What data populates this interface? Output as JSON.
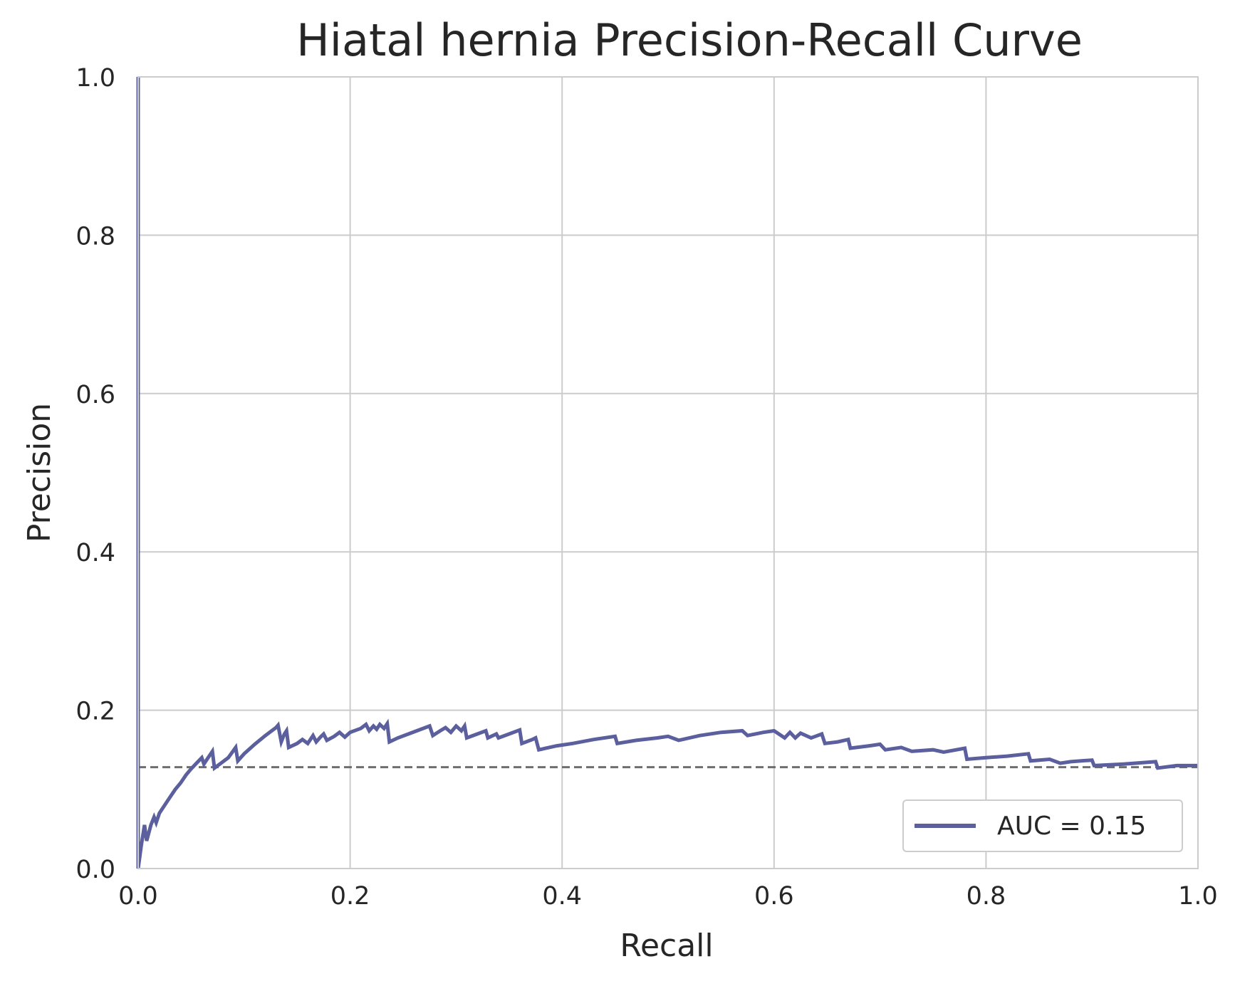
{
  "chart_data": {
    "type": "line",
    "title": "Hiatal hernia Precision-Recall Curve",
    "xlabel": "Recall",
    "ylabel": "Precision",
    "xlim": [
      0.0,
      1.0
    ],
    "ylim": [
      0.0,
      1.0
    ],
    "xticks": [
      "0.0",
      "0.2",
      "0.4",
      "0.6",
      "0.8",
      "1.0"
    ],
    "yticks": [
      "0.0",
      "0.2",
      "0.4",
      "0.6",
      "0.8",
      "1.0"
    ],
    "grid": true,
    "legend_position": "lower-right",
    "series": [
      {
        "name": "AUC = 0.15",
        "color": "#5b5f9d",
        "style": "solid",
        "points": [
          [
            0.0,
            1.0
          ],
          [
            0.0,
            0.0
          ],
          [
            0.003,
            0.03
          ],
          [
            0.006,
            0.055
          ],
          [
            0.008,
            0.035
          ],
          [
            0.012,
            0.055
          ],
          [
            0.015,
            0.065
          ],
          [
            0.017,
            0.058
          ],
          [
            0.02,
            0.07
          ],
          [
            0.025,
            0.08
          ],
          [
            0.03,
            0.09
          ],
          [
            0.035,
            0.1
          ],
          [
            0.04,
            0.108
          ],
          [
            0.045,
            0.118
          ],
          [
            0.05,
            0.126
          ],
          [
            0.055,
            0.133
          ],
          [
            0.06,
            0.14
          ],
          [
            0.062,
            0.132
          ],
          [
            0.065,
            0.138
          ],
          [
            0.07,
            0.148
          ],
          [
            0.072,
            0.127
          ],
          [
            0.078,
            0.133
          ],
          [
            0.085,
            0.14
          ],
          [
            0.092,
            0.153
          ],
          [
            0.094,
            0.136
          ],
          [
            0.1,
            0.145
          ],
          [
            0.11,
            0.157
          ],
          [
            0.12,
            0.168
          ],
          [
            0.13,
            0.178
          ],
          [
            0.132,
            0.181
          ],
          [
            0.135,
            0.16
          ],
          [
            0.138,
            0.17
          ],
          [
            0.14,
            0.174
          ],
          [
            0.142,
            0.153
          ],
          [
            0.15,
            0.158
          ],
          [
            0.155,
            0.163
          ],
          [
            0.16,
            0.158
          ],
          [
            0.165,
            0.168
          ],
          [
            0.168,
            0.16
          ],
          [
            0.172,
            0.166
          ],
          [
            0.175,
            0.17
          ],
          [
            0.178,
            0.162
          ],
          [
            0.185,
            0.167
          ],
          [
            0.19,
            0.172
          ],
          [
            0.195,
            0.166
          ],
          [
            0.2,
            0.172
          ],
          [
            0.21,
            0.177
          ],
          [
            0.215,
            0.182
          ],
          [
            0.218,
            0.174
          ],
          [
            0.222,
            0.18
          ],
          [
            0.225,
            0.176
          ],
          [
            0.228,
            0.182
          ],
          [
            0.232,
            0.177
          ],
          [
            0.235,
            0.183
          ],
          [
            0.237,
            0.16
          ],
          [
            0.245,
            0.165
          ],
          [
            0.255,
            0.17
          ],
          [
            0.265,
            0.175
          ],
          [
            0.275,
            0.18
          ],
          [
            0.278,
            0.168
          ],
          [
            0.285,
            0.174
          ],
          [
            0.29,
            0.178
          ],
          [
            0.295,
            0.172
          ],
          [
            0.3,
            0.18
          ],
          [
            0.305,
            0.174
          ],
          [
            0.308,
            0.18
          ],
          [
            0.31,
            0.165
          ],
          [
            0.32,
            0.17
          ],
          [
            0.328,
            0.174
          ],
          [
            0.33,
            0.165
          ],
          [
            0.338,
            0.17
          ],
          [
            0.34,
            0.165
          ],
          [
            0.35,
            0.17
          ],
          [
            0.36,
            0.175
          ],
          [
            0.362,
            0.158
          ],
          [
            0.372,
            0.163
          ],
          [
            0.375,
            0.165
          ],
          [
            0.378,
            0.15
          ],
          [
            0.395,
            0.155
          ],
          [
            0.41,
            0.158
          ],
          [
            0.43,
            0.163
          ],
          [
            0.45,
            0.167
          ],
          [
            0.452,
            0.158
          ],
          [
            0.47,
            0.162
          ],
          [
            0.49,
            0.165
          ],
          [
            0.5,
            0.167
          ],
          [
            0.51,
            0.162
          ],
          [
            0.53,
            0.168
          ],
          [
            0.55,
            0.172
          ],
          [
            0.57,
            0.174
          ],
          [
            0.575,
            0.168
          ],
          [
            0.59,
            0.172
          ],
          [
            0.6,
            0.174
          ],
          [
            0.61,
            0.165
          ],
          [
            0.615,
            0.172
          ],
          [
            0.62,
            0.165
          ],
          [
            0.625,
            0.171
          ],
          [
            0.635,
            0.165
          ],
          [
            0.645,
            0.17
          ],
          [
            0.648,
            0.158
          ],
          [
            0.66,
            0.16
          ],
          [
            0.67,
            0.163
          ],
          [
            0.672,
            0.152
          ],
          [
            0.69,
            0.155
          ],
          [
            0.7,
            0.157
          ],
          [
            0.705,
            0.15
          ],
          [
            0.72,
            0.153
          ],
          [
            0.73,
            0.148
          ],
          [
            0.75,
            0.15
          ],
          [
            0.76,
            0.147
          ],
          [
            0.78,
            0.152
          ],
          [
            0.782,
            0.138
          ],
          [
            0.8,
            0.14
          ],
          [
            0.82,
            0.142
          ],
          [
            0.84,
            0.145
          ],
          [
            0.842,
            0.136
          ],
          [
            0.86,
            0.138
          ],
          [
            0.87,
            0.133
          ],
          [
            0.88,
            0.135
          ],
          [
            0.9,
            0.137
          ],
          [
            0.902,
            0.13
          ],
          [
            0.93,
            0.132
          ],
          [
            0.96,
            0.135
          ],
          [
            0.962,
            0.127
          ],
          [
            0.98,
            0.13
          ],
          [
            1.0,
            0.13
          ]
        ]
      }
    ],
    "baseline": {
      "y": 0.128,
      "color": "#6e6e6e",
      "style": "dashed"
    }
  }
}
